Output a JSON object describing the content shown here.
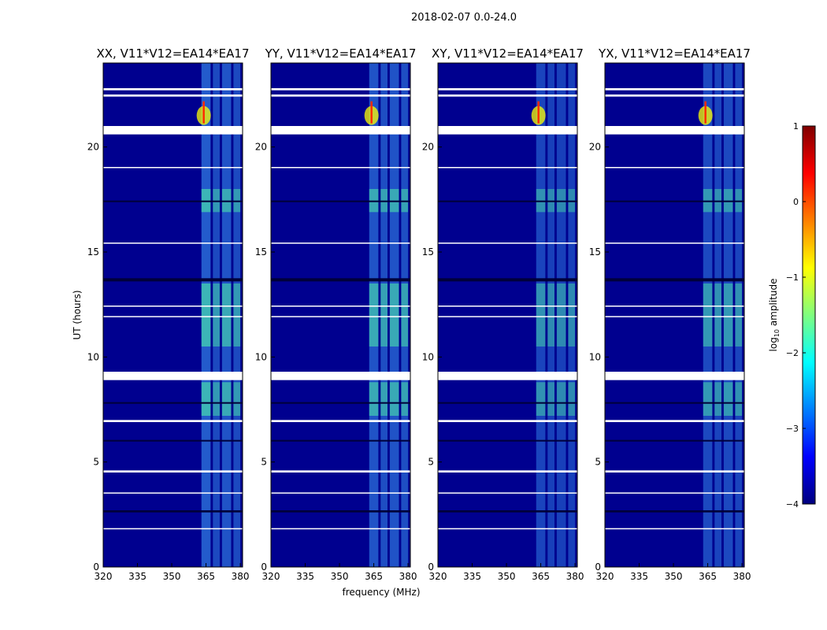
{
  "figure_title": "2018-02-07 0.0-24.0",
  "colors": {
    "background": "#00008f",
    "band_light": "#3fa6ff",
    "band_bright": "#52ffa6",
    "peak": "#ff2a00",
    "gap": "#ffffff"
  },
  "chart_data": {
    "type": "heatmap",
    "xlabel": "frequency (MHz)",
    "ylabel": "UT (hours)",
    "xlim": [
      320,
      381
    ],
    "ylim": [
      0,
      24
    ],
    "xticks": [
      "320",
      "335",
      "350",
      "365",
      "380"
    ],
    "xtick_values": [
      320,
      335,
      350,
      365,
      380
    ],
    "yticks": [
      "0",
      "5",
      "10",
      "15",
      "20"
    ],
    "ytick_values": [
      0,
      5,
      10,
      15,
      20
    ],
    "colorbar": {
      "label": "log",
      "label_sub": "10",
      "label_rest": " amplitude",
      "range": [
        -4,
        1
      ],
      "ticks": [
        "−4",
        "−3",
        "−2",
        "−1",
        "0",
        "1"
      ],
      "tick_values": [
        -4,
        -3,
        -2,
        -1,
        0,
        1
      ],
      "colormap": "jet"
    },
    "panels": [
      {
        "title": "XX, V11*V12=EA14*EA17",
        "band_strength": [
          1.0,
          0.8,
          0.9,
          0.8,
          0.7
        ]
      },
      {
        "title": "YY, V11*V12=EA14*EA17",
        "band_strength": [
          0.9,
          0.85,
          0.9,
          0.85,
          0.7
        ]
      },
      {
        "title": "XY, V11*V12=EA14*EA17",
        "band_strength": [
          0.75,
          0.7,
          0.7,
          0.7,
          0.55
        ]
      },
      {
        "title": "YX, V11*V12=EA14*EA17",
        "band_strength": [
          0.8,
          0.75,
          0.8,
          0.75,
          0.6
        ]
      }
    ],
    "bands_mhz": [
      [
        363,
        367
      ],
      [
        368,
        371
      ],
      [
        372,
        376
      ],
      [
        377,
        380
      ]
    ],
    "blanked_hours": [
      [
        20.6,
        21.0
      ],
      [
        8.9,
        9.3
      ],
      [
        22.4,
        22.5
      ],
      [
        22.7,
        22.8
      ],
      [
        19.0,
        19.05
      ],
      [
        4.5,
        4.6
      ],
      [
        6.9,
        7.0
      ],
      [
        3.5,
        3.55
      ],
      [
        1.8,
        1.85
      ],
      [
        15.4,
        15.45
      ],
      [
        11.9,
        11.95
      ],
      [
        12.4,
        12.45
      ]
    ],
    "dark_hours": [
      [
        13.6,
        13.75
      ],
      [
        17.4,
        17.45
      ],
      [
        7.8,
        7.85
      ],
      [
        6.0,
        6.05
      ],
      [
        2.6,
        2.7
      ]
    ],
    "peak": {
      "freq_mhz": 364,
      "hour": 21.5
    }
  }
}
